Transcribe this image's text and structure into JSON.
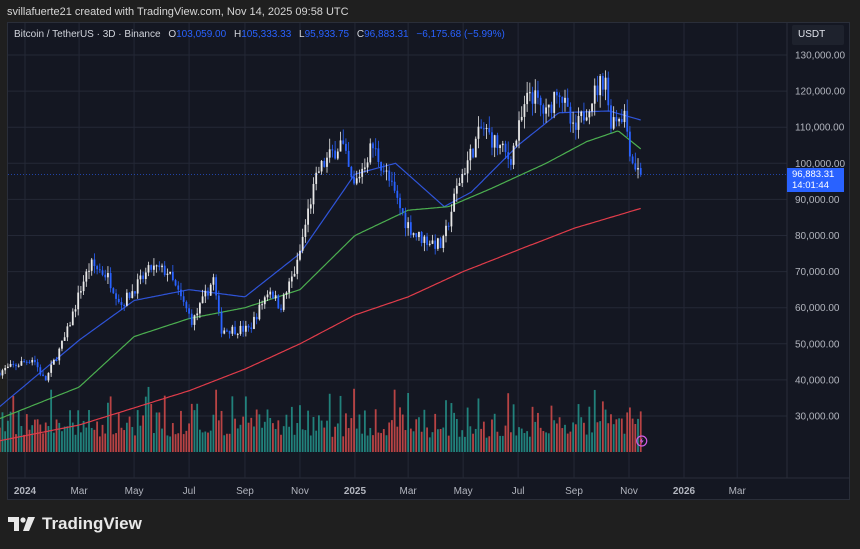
{
  "credit": "svillafuerte21 created with TradingView.com, Nov 14, 2025 09:58 UTC",
  "legend": {
    "symbol": "Bitcoin / TetherUS · 3D · Binance",
    "open_label": "O",
    "open": "103,059.00",
    "high_label": "H",
    "high": "105,333.33",
    "low_label": "L",
    "low": "95,933.75",
    "close_label": "C",
    "close": "96,883.31",
    "change": "−6,175.68 (−5.99%)"
  },
  "price_axis": {
    "unit": "USDT",
    "ticks": [
      "130,000.00",
      "120,000.00",
      "110,000.00",
      "100,000.00",
      "90,000.00",
      "80,000.00",
      "70,000.00",
      "60,000.00",
      "50,000.00",
      "40,000.00",
      "30,000.00"
    ],
    "last_price": "96,883.31",
    "countdown": "14:01:44"
  },
  "time_axis": {
    "ticks": [
      {
        "label": "2024",
        "date": "2024-01-01",
        "bold": true
      },
      {
        "label": "Mar",
        "date": "2024-03-01"
      },
      {
        "label": "May",
        "date": "2024-05-01"
      },
      {
        "label": "Jul",
        "date": "2024-07-01"
      },
      {
        "label": "Sep",
        "date": "2024-09-01"
      },
      {
        "label": "Nov",
        "date": "2024-11-01"
      },
      {
        "label": "2025",
        "date": "2025-01-01",
        "bold": true
      },
      {
        "label": "Mar",
        "date": "2025-03-01"
      },
      {
        "label": "May",
        "date": "2025-05-01"
      },
      {
        "label": "Jul",
        "date": "2025-07-01"
      },
      {
        "label": "Sep",
        "date": "2025-09-01"
      },
      {
        "label": "Nov",
        "date": "2025-11-01"
      },
      {
        "label": "2026",
        "date": "2026-01-01",
        "bold": true
      },
      {
        "label": "Mar",
        "date": "2026-03-01"
      }
    ]
  },
  "logo_text": "TradingView",
  "colors": {
    "up": "#e8e8e8",
    "down": "#2962ff",
    "vol_up": "#26a69a",
    "vol_down": "#ef5350",
    "ma_fast": "#2f54d8",
    "ma_mid": "#4caf50",
    "ma_slow": "#e03c4a"
  },
  "chart_data": {
    "type": "candlestick",
    "interval": "3D",
    "ylim": [
      20000,
      135000
    ],
    "close_path": [
      [
        "2023-12-01",
        42000
      ],
      [
        "2024-01-10",
        46000
      ],
      [
        "2024-01-23",
        39500
      ],
      [
        "2024-02-15",
        52000
      ],
      [
        "2024-03-05",
        67000
      ],
      [
        "2024-03-14",
        72000
      ],
      [
        "2024-04-01",
        69000
      ],
      [
        "2024-04-17",
        61000
      ],
      [
        "2024-05-20",
        71000
      ],
      [
        "2024-06-07",
        70000
      ],
      [
        "2024-07-05",
        56000
      ],
      [
        "2024-07-28",
        68000
      ],
      [
        "2024-08-05",
        54000
      ],
      [
        "2024-09-06",
        54000
      ],
      [
        "2024-09-28",
        65500
      ],
      [
        "2024-10-10",
        60000
      ],
      [
        "2024-10-29",
        72000
      ],
      [
        "2024-11-12",
        89000
      ],
      [
        "2024-11-22",
        98000
      ],
      [
        "2024-12-17",
        106000
      ],
      [
        "2024-12-30",
        93000
      ],
      [
        "2025-01-20",
        105000
      ],
      [
        "2025-02-03",
        98000
      ],
      [
        "2025-02-26",
        84000
      ],
      [
        "2025-03-10",
        80000
      ],
      [
        "2025-04-08",
        77000
      ],
      [
        "2025-04-25",
        94000
      ],
      [
        "2025-05-22",
        110000
      ],
      [
        "2025-06-22",
        101000
      ],
      [
        "2025-07-14",
        120000
      ],
      [
        "2025-08-02",
        113000
      ],
      [
        "2025-08-14",
        122000
      ],
      [
        "2025-09-01",
        108000
      ],
      [
        "2025-09-18",
        117000
      ],
      [
        "2025-10-06",
        124500
      ],
      [
        "2025-10-10",
        112000
      ],
      [
        "2025-10-27",
        114000
      ],
      [
        "2025-11-04",
        101000
      ],
      [
        "2025-11-14",
        96883.31
      ]
    ],
    "moving_averages": [
      {
        "color": "#2f54d8",
        "points": [
          [
            "2023-12-01",
            32000
          ],
          [
            "2024-03-01",
            51000
          ],
          [
            "2024-05-01",
            62000
          ],
          [
            "2024-07-01",
            65000
          ],
          [
            "2024-09-01",
            63000
          ],
          [
            "2024-11-01",
            75000
          ],
          [
            "2025-01-01",
            97000
          ],
          [
            "2025-02-15",
            100000
          ],
          [
            "2025-04-10",
            88000
          ],
          [
            "2025-05-10",
            92000
          ],
          [
            "2025-07-01",
            105000
          ],
          [
            "2025-08-15",
            114000
          ],
          [
            "2025-10-10",
            114500
          ],
          [
            "2025-11-14",
            112000
          ]
        ]
      },
      {
        "color": "#4caf50",
        "points": [
          [
            "2023-12-01",
            29000
          ],
          [
            "2024-03-01",
            38000
          ],
          [
            "2024-05-01",
            52000
          ],
          [
            "2024-07-01",
            57000
          ],
          [
            "2024-09-01",
            60000
          ],
          [
            "2024-11-01",
            65000
          ],
          [
            "2025-01-01",
            80000
          ],
          [
            "2025-03-01",
            87000
          ],
          [
            "2025-04-15",
            88000
          ],
          [
            "2025-06-01",
            93000
          ],
          [
            "2025-08-01",
            100000
          ],
          [
            "2025-09-15",
            106000
          ],
          [
            "2025-10-20",
            109000
          ],
          [
            "2025-11-14",
            104000
          ]
        ]
      },
      {
        "color": "#e03c4a",
        "points": [
          [
            "2023-12-01",
            23000
          ],
          [
            "2024-03-01",
            27500
          ],
          [
            "2024-07-01",
            37000
          ],
          [
            "2024-09-01",
            43000
          ],
          [
            "2024-11-01",
            50000
          ],
          [
            "2025-01-01",
            58000
          ],
          [
            "2025-03-01",
            63000
          ],
          [
            "2025-05-01",
            70000
          ],
          [
            "2025-07-01",
            76000
          ],
          [
            "2025-09-01",
            82000
          ],
          [
            "2025-11-14",
            87500
          ]
        ]
      }
    ]
  }
}
